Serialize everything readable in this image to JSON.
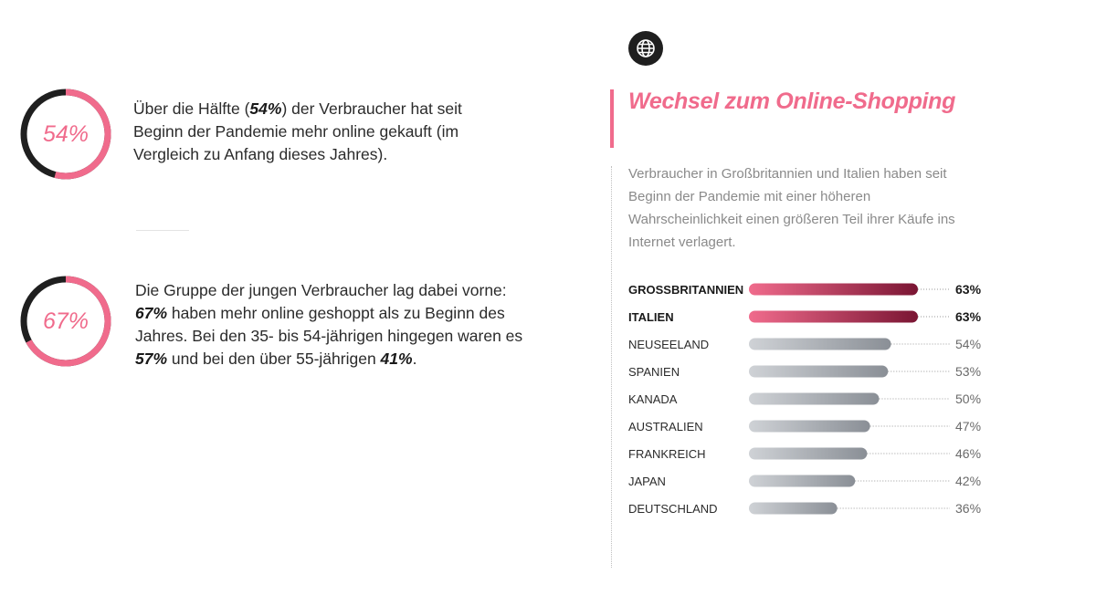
{
  "stats": [
    {
      "percent_label": "54%",
      "value": 54,
      "text_before": "Über die Hälfte (",
      "text_bold": "54%",
      "text_after": ") der Verbraucher hat seit Beginn der Pandemie mehr online gekauft (im Vergleich zu Anfang dieses Jahres)."
    },
    {
      "percent_label": "67%",
      "value": 67,
      "text_before": "Die Gruppe der jungen Verbraucher lag dabei vorne: ",
      "bold_1": "67%",
      "text_mid_1": " haben mehr online geshoppt als zu Beginn des Jahres. Bei den 35- bis 54-jährigen hingegen waren es ",
      "bold_2": "57%",
      "text_mid_2": " und bei den über 55-jährigen ",
      "bold_3": "41%",
      "text_end": "."
    }
  ],
  "panel": {
    "icon": "globe-icon",
    "title": "Wechsel zum Online-Shopping",
    "description": "Verbraucher in Großbritannien und Italien haben seit Beginn der Pandemie mit einer höheren Wahrscheinlichkeit einen größeren Teil ihrer Käufe ins Internet verlagert."
  },
  "colors": {
    "accent": "#f06b8c",
    "highlight_bar_start": "#f06b8c",
    "highlight_bar_end": "#7a1533",
    "grey_bar_start": "#cfd2d6",
    "grey_bar_end": "#8a8f96",
    "ring_dark": "#1f1f1f"
  },
  "chart_data": {
    "type": "bar",
    "orientation": "horizontal",
    "categories": [
      "GROSSBRITANNIEN",
      "ITALIEN",
      "NEUSEELAND",
      "SPANIEN",
      "KANADA",
      "AUSTRALIEN",
      "FRANKREICH",
      "JAPAN",
      "DEUTSCHLAND"
    ],
    "values": [
      63,
      63,
      54,
      53,
      50,
      47,
      46,
      42,
      36
    ],
    "value_labels": [
      "63%",
      "63%",
      "54%",
      "53%",
      "50%",
      "47%",
      "46%",
      "42%",
      "36%"
    ],
    "highlighted": [
      true,
      true,
      false,
      false,
      false,
      false,
      false,
      false,
      false
    ],
    "xlim": [
      30,
      63
    ]
  }
}
